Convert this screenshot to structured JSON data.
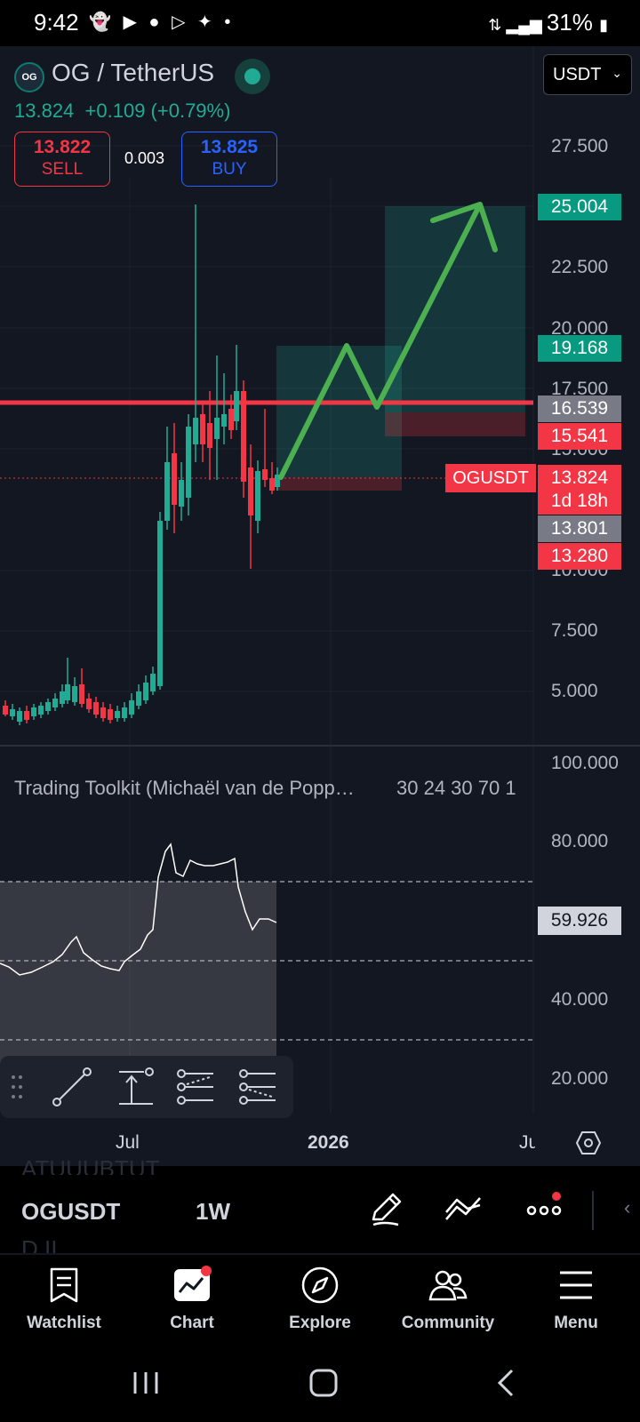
{
  "status_bar": {
    "time": "9:42",
    "battery": "31%",
    "notification_icons": [
      "snapchat-icon",
      "youtube-icon",
      "coin-icon",
      "media-icon",
      "app-icon",
      "dot-icon"
    ]
  },
  "header": {
    "logo_text": "OG",
    "pair": "OG / TetherUS",
    "market_open_indicator_color": "#22ab94",
    "last_price": "13.824",
    "change": "+0.109 (+0.79%)",
    "sell": {
      "value": "13.822",
      "label": "SELL"
    },
    "spread": "0.003",
    "buy": {
      "value": "13.825",
      "label": "BUY"
    },
    "currency": "USDT"
  },
  "price_axis": {
    "ticks": [
      "27.500",
      "22.500",
      "20.000",
      "17.500",
      "15.000",
      "10.000",
      "7.500",
      "5.000"
    ],
    "labels": [
      {
        "text": "25.004",
        "bg": "#089981"
      },
      {
        "text": "19.168",
        "bg": "#089981"
      },
      {
        "text": "16.539",
        "bg": "#787b86"
      },
      {
        "text": "15.541",
        "bg": "#f23645"
      },
      {
        "text": "13.824",
        "bg": "#f23645"
      },
      {
        "text": "1d 18h",
        "bg": "#f23645"
      },
      {
        "text": "13.801",
        "bg": "#787b86"
      },
      {
        "text": "13.280",
        "bg": "#f23645"
      }
    ],
    "symbol_tag": "OGUSDT"
  },
  "indicator": {
    "title": "Trading Toolkit (Michaël van de Popp…",
    "params": "30 24 30 70 1",
    "ticks": [
      "100.000",
      "80.000",
      "40.000",
      "20.000"
    ],
    "current_value": "59.926"
  },
  "time_axis": {
    "labels": [
      "Jul",
      "2026",
      "Ju"
    ]
  },
  "drawing_toolbar": {
    "tools": [
      "trend-line-icon",
      "vertical-measure-icon",
      "long-position-icon",
      "short-position-icon"
    ]
  },
  "symbol_bar": {
    "ghost_above": "ATUUUBTUT",
    "symbol": "OGUSDT",
    "interval": "1W",
    "ghost_below": "D.II"
  },
  "bottom_nav": [
    {
      "label": "Watchlist",
      "icon": "watchlist-icon"
    },
    {
      "label": "Chart",
      "icon": "chart-icon"
    },
    {
      "label": "Explore",
      "icon": "compass-icon"
    },
    {
      "label": "Community",
      "icon": "community-icon"
    },
    {
      "label": "Menu",
      "icon": "menu-icon"
    }
  ],
  "colors": {
    "up": "#22ab94",
    "down": "#f23645",
    "resistance_line": "#f23645",
    "arrow": "#4caf50",
    "background": "#131722"
  }
}
